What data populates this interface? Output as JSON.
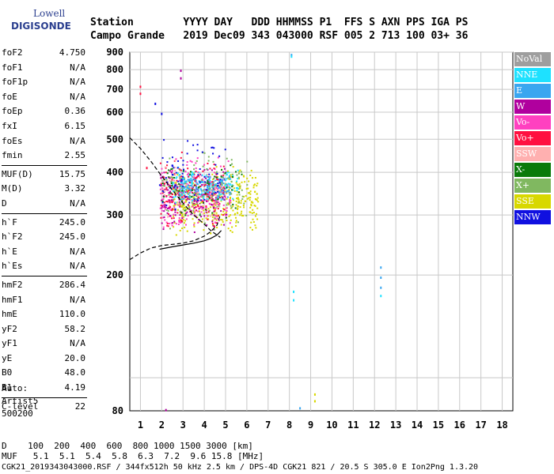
{
  "logo": {
    "top": "Lowell",
    "bottom": "DIGISONDE"
  },
  "header": {
    "line1": "Station        YYYY DAY   DDD HHMMSS P1  FFS S AXN PPS IGA PS",
    "line2": "Campo Grande   2019 Dec09 343 043000 RSF 005 2 713 100 03+ 36"
  },
  "params": [
    {
      "name": "foF2",
      "value": "4.750"
    },
    {
      "name": "foF1",
      "value": "N/A"
    },
    {
      "name": "foF1p",
      "value": "N/A"
    },
    {
      "name": "foE",
      "value": "N/A"
    },
    {
      "name": "foEp",
      "value": "0.36"
    },
    {
      "name": "fxI",
      "value": "6.15"
    },
    {
      "name": "foEs",
      "value": "N/A"
    },
    {
      "name": "fmin",
      "value": "2.55"
    },
    {
      "sep": true
    },
    {
      "name": "MUF(D)",
      "value": "15.75"
    },
    {
      "name": "M(D)",
      "value": "3.32"
    },
    {
      "name": "D",
      "value": "N/A"
    },
    {
      "sep": true
    },
    {
      "name": "h`F",
      "value": "245.0"
    },
    {
      "name": "h`F2",
      "value": "245.0"
    },
    {
      "name": "h`E",
      "value": "N/A"
    },
    {
      "name": "h`Es",
      "value": "N/A"
    },
    {
      "sep": true
    },
    {
      "name": "hmF2",
      "value": "286.4"
    },
    {
      "name": "hmF1",
      "value": "N/A"
    },
    {
      "name": "hmE",
      "value": "110.0"
    },
    {
      "name": "yF2",
      "value": "58.2"
    },
    {
      "name": "yF1",
      "value": "N/A"
    },
    {
      "name": "yE",
      "value": "20.0"
    },
    {
      "name": "B0",
      "value": "48.0"
    },
    {
      "name": "B1",
      "value": "4.19"
    },
    {
      "sep": true
    },
    {
      "name": "C-level",
      "value": "22"
    }
  ],
  "auto": {
    "line1": "Auto:",
    "line2": "Artist5",
    "line3": "500200"
  },
  "bottom": {
    "line1": "D    100  200  400  600  800 1000 1500 3000 [km]",
    "line2": "MUF   5.1  5.1  5.4  5.8  6.3  7.2  9.6 15.8 [MHz]"
  },
  "footer": "CGK21_2019343043000.RSF / 344fx512h 50 kHz 2.5 km / DPS-4D CGK21 821 / 20.5 S 305.0 E Ion2Png 1.3.20",
  "legend": [
    {
      "label": "NoVal",
      "color": "#9e9e9e"
    },
    {
      "label": "NNE",
      "color": "#1ee1ff"
    },
    {
      "label": "E",
      "color": "#3aa6f0"
    },
    {
      "label": "W",
      "color": "#b0009e"
    },
    {
      "label": "Vo-",
      "color": "#ff40c0"
    },
    {
      "label": "Vo+",
      "color": "#ff1040"
    },
    {
      "label": "SSW",
      "color": "#ffb0b0"
    },
    {
      "label": "X-",
      "color": "#0a7a0a"
    },
    {
      "label": "X+",
      "color": "#80b860"
    },
    {
      "label": "SSE",
      "color": "#d8d800"
    },
    {
      "label": "NNW",
      "color": "#1010e0"
    }
  ],
  "chart_data": {
    "type": "scatter",
    "title": "",
    "xlabel": "",
    "ylabel": "",
    "xlim": [
      0.5,
      18.5
    ],
    "ylim": [
      80,
      900
    ],
    "yscale": "log",
    "grid": true,
    "x_ticks": [
      "1",
      "2",
      "3",
      "4",
      "5",
      "6",
      "7",
      "8",
      "9",
      "10",
      "11",
      "12",
      "13",
      "14",
      "15",
      "16",
      "17",
      "18"
    ],
    "x_tick_values": [
      1,
      2,
      3,
      4,
      5,
      6,
      7,
      8,
      9,
      10,
      11,
      12,
      13,
      14,
      15,
      16,
      17,
      18
    ],
    "y_ticks": [
      "80",
      "200",
      "300",
      "400",
      "500",
      "600",
      "700",
      "800",
      "900"
    ],
    "y_tick_values": [
      80,
      200,
      300,
      400,
      500,
      600,
      700,
      800,
      900
    ],
    "curves": [
      {
        "name": "",
        "color": "#000000",
        "style": "dashed",
        "x": [
          0.5,
          1.0,
          1.5,
          2.0,
          2.5,
          3.0,
          3.5,
          4.0,
          4.3,
          4.6,
          4.75
        ],
        "y": [
          505,
          470,
          430,
          390,
          355,
          325,
          300,
          282,
          270,
          262,
          258
        ]
      },
      {
        "name": "",
        "color": "#000000",
        "style": "dashed",
        "x": [
          0.5,
          1.0,
          1.5,
          2.0,
          2.5,
          3.0,
          3.5,
          4.0,
          4.3,
          4.6,
          4.75
        ],
        "y": [
          222,
          232,
          240,
          244,
          246,
          248,
          252,
          260,
          268,
          280,
          300
        ]
      },
      {
        "name": "",
        "color": "#000000",
        "style": "solid",
        "x": [
          1.9,
          2.5,
          3.0,
          3.5,
          4.0,
          4.3,
          4.6,
          4.8
        ],
        "y": [
          238,
          242,
          245,
          248,
          252,
          256,
          262,
          270
        ]
      }
    ],
    "clusters": [
      {
        "name": "SSE",
        "color": "#d8d800",
        "x": [
          2.5,
          6.5
        ],
        "y": [
          260,
          420
        ],
        "n": 380
      },
      {
        "name": "Vo-",
        "color": "#ff40c0",
        "x": [
          1.9,
          5.2
        ],
        "y": [
          270,
          450
        ],
        "n": 260
      },
      {
        "name": "W",
        "color": "#b0009e",
        "x": [
          1.9,
          5.0
        ],
        "y": [
          260,
          430
        ],
        "n": 160
      },
      {
        "name": "NNE",
        "color": "#1ee1ff",
        "x": [
          2.4,
          5.6
        ],
        "y": [
          320,
          420
        ],
        "n": 160
      },
      {
        "name": "E",
        "color": "#3aa6f0",
        "x": [
          2.8,
          5.2
        ],
        "y": [
          330,
          400
        ],
        "n": 150
      },
      {
        "name": "Vo+",
        "color": "#ff1040",
        "x": [
          1.9,
          4.9
        ],
        "y": [
          270,
          470
        ],
        "n": 130
      },
      {
        "name": "X+",
        "color": "#80b860",
        "x": [
          2.0,
          6.2
        ],
        "y": [
          270,
          470
        ],
        "n": 110
      },
      {
        "name": "X-",
        "color": "#0a7a0a",
        "x": [
          2.0,
          5.8
        ],
        "y": [
          290,
          460
        ],
        "n": 60
      },
      {
        "name": "NNW",
        "color": "#1010e0",
        "x": [
          1.8,
          5.0
        ],
        "y": [
          290,
          520
        ],
        "n": 70
      },
      {
        "name": "SSW",
        "color": "#ffb0b0",
        "x": [
          2.0,
          4.8
        ],
        "y": [
          280,
          450
        ],
        "n": 50
      }
    ],
    "isolated_points": [
      {
        "x": 8.1,
        "y": 890,
        "color": "#3aa6f0"
      },
      {
        "x": 8.1,
        "y": 880,
        "color": "#1ee1ff"
      },
      {
        "x": 2.9,
        "y": 800,
        "color": "#b0009e"
      },
      {
        "x": 2.9,
        "y": 760,
        "color": "#b0009e"
      },
      {
        "x": 1.0,
        "y": 718,
        "color": "#ff1040"
      },
      {
        "x": 1.0,
        "y": 685,
        "color": "#ff1040"
      },
      {
        "x": 1.7,
        "y": 640,
        "color": "#1010e0"
      },
      {
        "x": 2.0,
        "y": 598,
        "color": "#1010e0"
      },
      {
        "x": 1.3,
        "y": 415,
        "color": "#ff1040"
      },
      {
        "x": 8.2,
        "y": 180,
        "color": "#1ee1ff"
      },
      {
        "x": 8.2,
        "y": 170,
        "color": "#1ee1ff"
      },
      {
        "x": 12.3,
        "y": 212,
        "color": "#3aa6f0"
      },
      {
        "x": 12.3,
        "y": 198,
        "color": "#3aa6f0"
      },
      {
        "x": 12.3,
        "y": 185,
        "color": "#3aa6f0"
      },
      {
        "x": 12.3,
        "y": 175,
        "color": "#1ee1ff"
      },
      {
        "x": 9.2,
        "y": 90,
        "color": "#d8d800"
      },
      {
        "x": 9.2,
        "y": 86,
        "color": "#d8d800"
      },
      {
        "x": 8.5,
        "y": 82,
        "color": "#3aa6f0"
      },
      {
        "x": 2.2,
        "y": 81,
        "color": "#b0009e"
      }
    ]
  }
}
